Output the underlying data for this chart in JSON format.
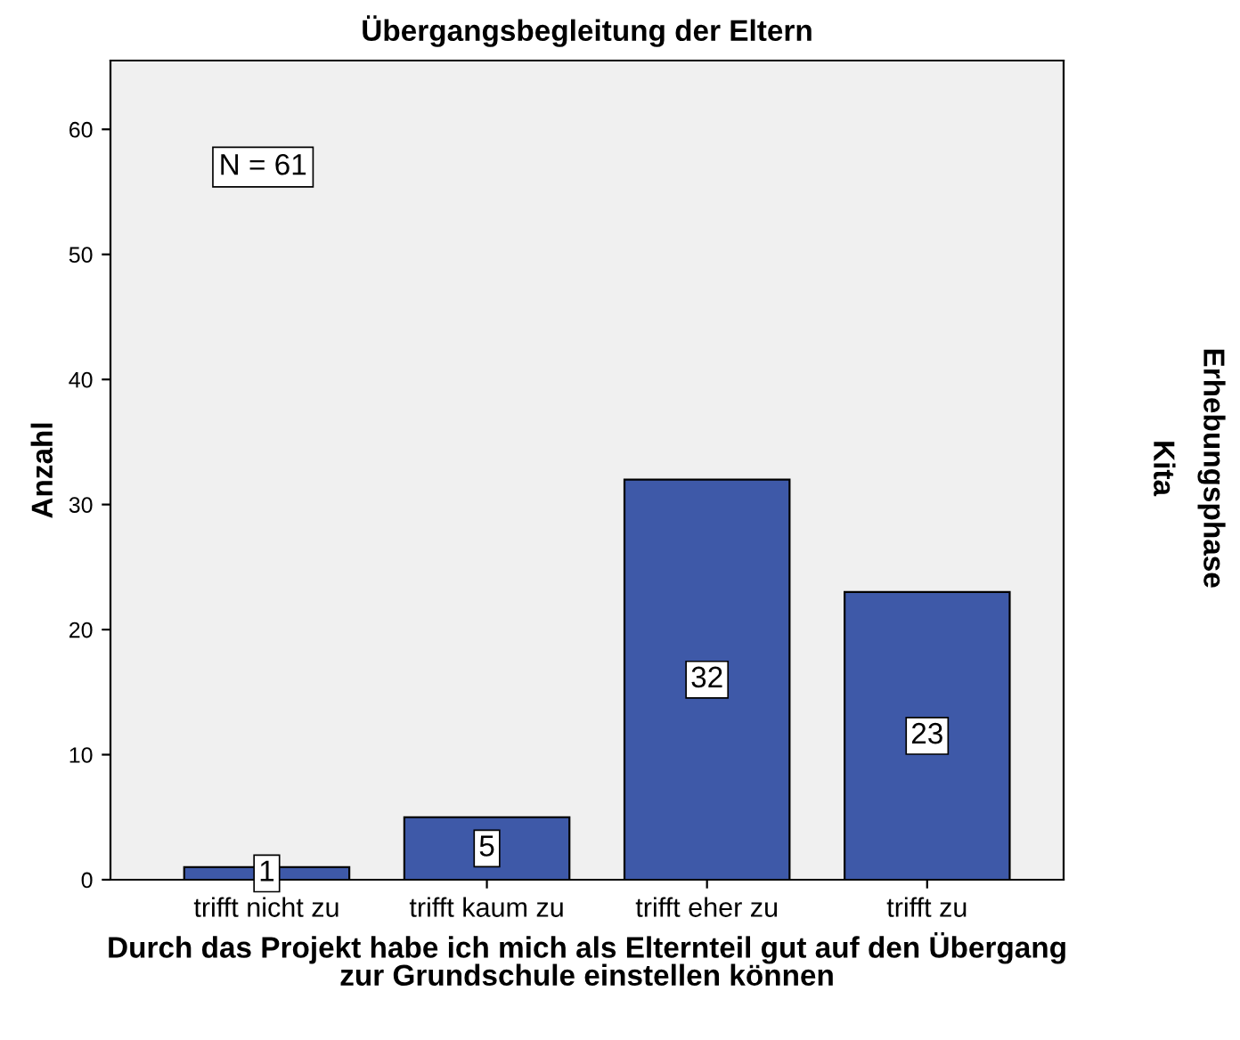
{
  "chart_data": {
    "type": "bar",
    "title": "Übergangsbegleitung der Eltern",
    "xlabel": "Durch das Projekt habe ich mich als Elternteil gut auf den Übergang\nzur Grundschule einstellen können",
    "ylabel": "Anzahl",
    "categories": [
      "trifft nicht zu",
      "trifft kaum zu",
      "trifft eher zu",
      "trifft zu"
    ],
    "values": [
      1,
      5,
      32,
      23
    ],
    "color": "#3e59a8",
    "data_labels": true,
    "ylim": [
      0,
      65.5
    ],
    "yticks": [
      0,
      10,
      20,
      30,
      40,
      50,
      60
    ],
    "grid": false,
    "legend": false,
    "annotations": [
      "N = 61",
      "Erhebungsphase",
      "Kita"
    ]
  }
}
